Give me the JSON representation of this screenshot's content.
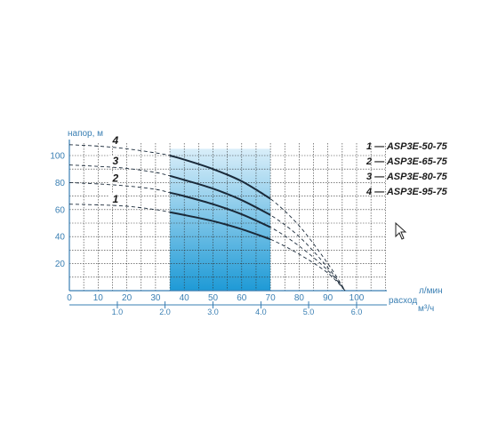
{
  "chart_data": {
    "type": "line",
    "y_axis_label": "напор, м",
    "x_axis_label_primary": "расход л/мин",
    "x_axis_label_primary_top": "л/мин",
    "x_axis_label_primary_bottom": "расход",
    "x_axis_label_secondary": "м³/ч",
    "xlim": [
      0,
      110
    ],
    "ylim": [
      0,
      110
    ],
    "x_ticks": [
      0,
      10,
      20,
      30,
      40,
      50,
      60,
      70,
      80,
      90,
      100
    ],
    "y_ticks": [
      20,
      40,
      60,
      80,
      100
    ],
    "x2_ticks": [
      {
        "value": 1.0,
        "label": "1.0",
        "lpm": 16.7
      },
      {
        "value": 2.0,
        "label": "2.0",
        "lpm": 33.3
      },
      {
        "value": 3.0,
        "label": "3.0",
        "lpm": 50
      },
      {
        "value": 4.0,
        "label": "4.0",
        "lpm": 66.7
      },
      {
        "value": 5.0,
        "label": "5.0",
        "lpm": 83.3
      },
      {
        "value": 6.0,
        "label": "6.0",
        "lpm": 100
      }
    ],
    "working_range_lpm": [
      35,
      70
    ],
    "series": [
      {
        "id": "1",
        "name": "ASP3E-50-75",
        "legend": "1 — ASP3E-50-75",
        "x": [
          0,
          10,
          20,
          30,
          35,
          40,
          50,
          60,
          70,
          80,
          90,
          96
        ],
        "y": [
          64,
          63.5,
          62.5,
          60,
          58,
          56,
          51.5,
          45.5,
          38,
          27,
          13,
          0
        ]
      },
      {
        "id": "2",
        "name": "ASP3E-65-75",
        "legend": "2 — ASP3E-65-75",
        "x": [
          0,
          10,
          20,
          30,
          35,
          40,
          50,
          60,
          70,
          80,
          90,
          96
        ],
        "y": [
          80,
          79,
          77.5,
          75,
          72.5,
          70,
          64,
          56.5,
          47,
          33,
          15,
          0
        ]
      },
      {
        "id": "3",
        "name": "ASP3E-80-75",
        "legend": "3 — ASP3E-80-75",
        "x": [
          0,
          10,
          20,
          30,
          35,
          40,
          50,
          60,
          70,
          80,
          90,
          96
        ],
        "y": [
          93,
          92,
          90.5,
          87.5,
          85,
          82,
          75.5,
          67,
          56,
          40,
          17,
          0
        ]
      },
      {
        "id": "4",
        "name": "ASP3E-95-75",
        "legend": "4 — ASP3E-95-75",
        "x": [
          0,
          10,
          20,
          30,
          35,
          40,
          50,
          60,
          70,
          80,
          90,
          96
        ],
        "y": [
          108,
          107,
          105,
          102,
          100,
          97,
          90,
          81,
          68,
          48,
          20,
          0
        ]
      }
    ],
    "grid": true,
    "legend_position": "right"
  },
  "colors": {
    "axis": "#3a7fb3",
    "grid": "#2b2b2b",
    "curve": "#1a2a3a",
    "fill_top": "#d6ebf8",
    "fill_bottom": "#1e9ad6"
  }
}
